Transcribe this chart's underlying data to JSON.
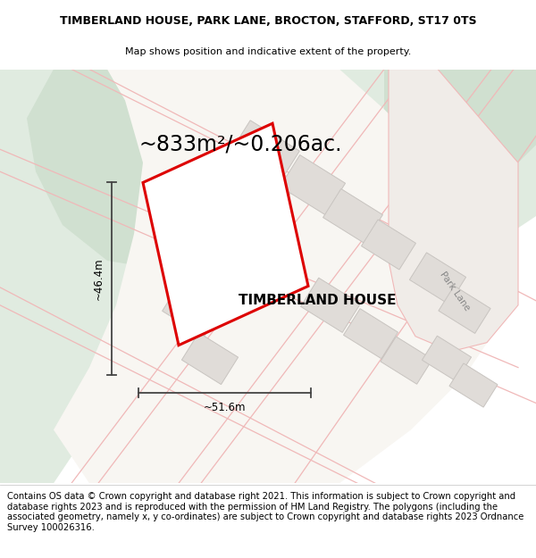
{
  "title_line1": "TIMBERLAND HOUSE, PARK LANE, BROCTON, STAFFORD, ST17 0TS",
  "title_line2": "Map shows position and indicative extent of the property.",
  "area_text": "~833m²/~0.206ac.",
  "property_name": "TIMBERLAND HOUSE",
  "dim_height": "~46.4m",
  "dim_width": "~51.6m",
  "road_label": "Park Lane",
  "copyright_text": "Contains OS data © Crown copyright and database right 2021. This information is subject to Crown copyright and database rights 2023 and is reproduced with the permission of HM Land Registry. The polygons (including the associated geometry, namely x, y co-ordinates) are subject to Crown copyright and database rights 2023 Ordnance Survey 100026316.",
  "bg_color": "#ffffff",
  "map_bg_color": "#f7f4f0",
  "green_light": "#e0ebe0",
  "green_mid": "#d0e0d0",
  "green_dark": "#c0d4c0",
  "property_fill": "#ffffff",
  "property_edge": "#dd0000",
  "road_line_color": "#f0b8b8",
  "building_fill": "#e0dcd8",
  "building_edge": "#c8c4c0",
  "dim_line_color": "#444444",
  "title_fontsize": 9.0,
  "subtitle_fontsize": 8.0,
  "area_fontsize": 17,
  "propname_fontsize": 11,
  "dim_fontsize": 8.5,
  "road_label_fontsize": 7.5,
  "copyright_fontsize": 7.2
}
